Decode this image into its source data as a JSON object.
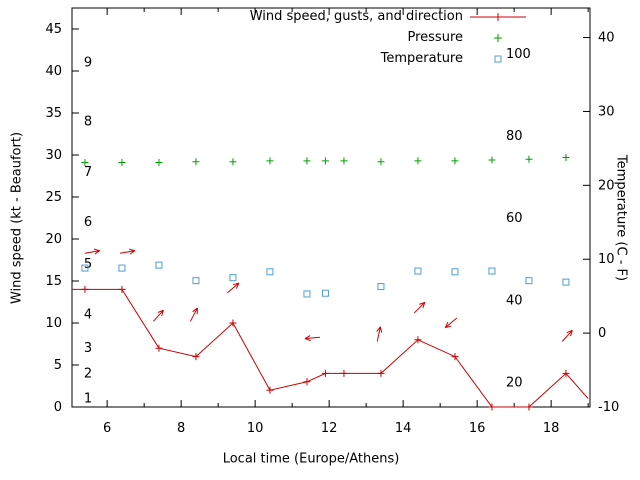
{
  "chart_data": {
    "type": "line",
    "xlabel": "Local time (Europe/Athens)",
    "ylabel_left": "Wind speed (kt - Beaufort)",
    "ylabel_right": "Temperature (C - F)",
    "x_domain": [
      5.05,
      19.05
    ],
    "x_ticks_major": [
      6,
      8,
      10,
      12,
      14,
      16,
      18
    ],
    "x_ticks_minor": [
      7,
      9,
      11,
      13,
      15,
      17,
      19
    ],
    "left_axis": {
      "domain": [
        0,
        47.5
      ],
      "ticks": [
        0,
        5,
        10,
        15,
        20,
        25,
        30,
        35,
        40,
        45
      ]
    },
    "right_axis": {
      "domain": [
        -10,
        44
      ],
      "ticks": [
        -10,
        0,
        10,
        20,
        30,
        40
      ]
    },
    "beaufort_labels": [
      {
        "text": "1",
        "kt": 1
      },
      {
        "text": "2",
        "kt": 4
      },
      {
        "text": "3",
        "kt": 7
      },
      {
        "text": "4",
        "kt": 11
      },
      {
        "text": "5",
        "kt": 17
      },
      {
        "text": "6",
        "kt": 22
      },
      {
        "text": "7",
        "kt": 28
      },
      {
        "text": "8",
        "kt": 34
      },
      {
        "text": "9",
        "kt": 41
      }
    ],
    "fahrenheit_labels": [
      {
        "text": "20",
        "c": -6.7
      },
      {
        "text": "40",
        "c": 4.4
      },
      {
        "text": "60",
        "c": 15.6
      },
      {
        "text": "80",
        "c": 26.7
      },
      {
        "text": "100",
        "c": 37.8
      }
    ],
    "legend": [
      {
        "label": "Wind speed, gusts, and direction"
      },
      {
        "label": "Pressure"
      },
      {
        "label": "Temperature"
      }
    ],
    "series": {
      "wind_speed": {
        "name": "Wind speed, gusts, and direction",
        "color": "#cc0000",
        "axis": "left",
        "marker": "plus",
        "line": true,
        "points": [
          [
            5.05,
            14
          ],
          [
            5.4,
            14
          ],
          [
            6.4,
            14
          ],
          [
            7.4,
            7
          ],
          [
            8.4,
            6
          ],
          [
            9.4,
            10
          ],
          [
            10.4,
            2
          ],
          [
            11.4,
            3
          ],
          [
            11.9,
            4
          ],
          [
            12.4,
            4
          ],
          [
            13.4,
            4
          ],
          [
            14.4,
            8
          ],
          [
            15.4,
            6
          ],
          [
            16.4,
            0
          ],
          [
            17.4,
            0
          ],
          [
            18.4,
            4
          ],
          [
            19.0,
            1
          ]
        ],
        "marker_skip_indices": [
          0,
          16
        ]
      },
      "pressure": {
        "name": "Pressure",
        "color": "#00a000",
        "axis": "left",
        "marker": "plus",
        "line": false,
        "points": [
          [
            5.4,
            29.1
          ],
          [
            6.4,
            29.1
          ],
          [
            7.4,
            29.1
          ],
          [
            8.4,
            29.2
          ],
          [
            9.4,
            29.2
          ],
          [
            10.4,
            29.3
          ],
          [
            11.4,
            29.3
          ],
          [
            11.9,
            29.3
          ],
          [
            12.4,
            29.3
          ],
          [
            13.4,
            29.2
          ],
          [
            14.4,
            29.3
          ],
          [
            15.4,
            29.3
          ],
          [
            16.4,
            29.4
          ],
          [
            17.4,
            29.5
          ],
          [
            18.4,
            29.7
          ]
        ]
      },
      "temperature": {
        "name": "Temperature",
        "color": "#4f9fd8",
        "axis": "right",
        "marker": "open-square",
        "line": false,
        "points": [
          [
            5.4,
            8.8
          ],
          [
            6.4,
            8.8
          ],
          [
            7.4,
            9.2
          ],
          [
            8.4,
            7.1
          ],
          [
            9.4,
            7.5
          ],
          [
            10.4,
            8.3
          ],
          [
            11.4,
            5.3
          ],
          [
            11.9,
            5.4
          ],
          [
            13.4,
            6.3
          ],
          [
            14.4,
            8.4
          ],
          [
            15.4,
            8.3
          ],
          [
            16.4,
            8.4
          ],
          [
            17.4,
            7.1
          ],
          [
            18.4,
            6.9
          ]
        ]
      },
      "wind_direction": {
        "name": "Wind direction arrows",
        "color": "#cc0000",
        "axis": "left",
        "arrows": [
          {
            "x": 5.4,
            "y": 18.3,
            "deg": 10
          },
          {
            "x": 6.35,
            "y": 18.3,
            "deg": 10
          },
          {
            "x": 7.25,
            "y": 10.2,
            "deg": 48
          },
          {
            "x": 8.25,
            "y": 10.2,
            "deg": 62
          },
          {
            "x": 9.25,
            "y": 13.6,
            "deg": 40
          },
          {
            "x": 11.75,
            "y": 8.3,
            "deg": 185
          },
          {
            "x": 13.3,
            "y": 7.8,
            "deg": 78
          },
          {
            "x": 14.3,
            "y": 11.2,
            "deg": 45
          },
          {
            "x": 15.45,
            "y": 10.6,
            "deg": 220
          },
          {
            "x": 18.3,
            "y": 7.8,
            "deg": 48
          }
        ]
      }
    }
  }
}
